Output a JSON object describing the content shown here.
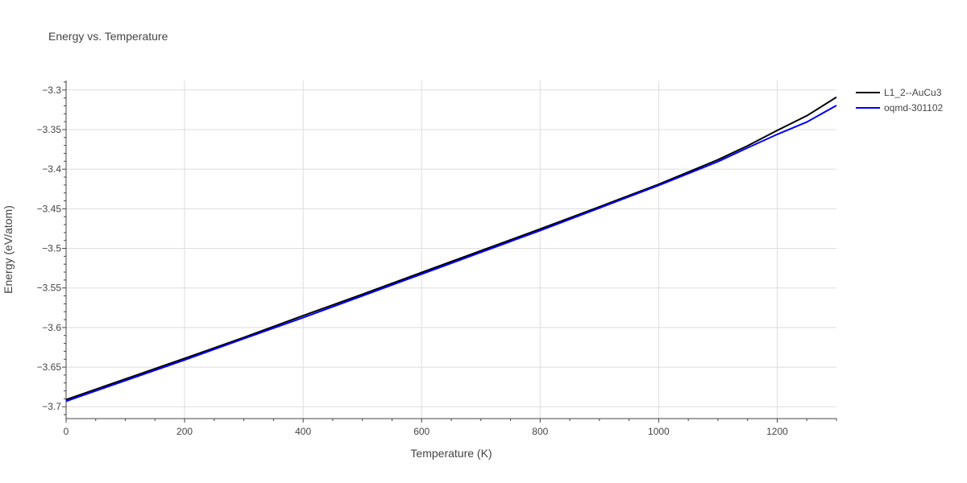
{
  "chart_data": {
    "type": "line",
    "title": "Energy vs. Temperature",
    "xlabel": "Temperature (K)",
    "ylabel": "Energy (eV/atom)",
    "xlim": [
      0,
      1300
    ],
    "ylim": [
      -3.715,
      -3.288
    ],
    "xticks": [
      0,
      200,
      400,
      600,
      800,
      1000,
      1200
    ],
    "xtick_labels": [
      "0",
      "200",
      "400",
      "600",
      "800",
      "1000",
      "1200"
    ],
    "yticks": [
      -3.7,
      -3.65,
      -3.6,
      -3.55,
      -3.5,
      -3.45,
      -3.4,
      -3.35,
      -3.3
    ],
    "ytick_labels": [
      "−3.7",
      "−3.65",
      "−3.6",
      "−3.55",
      "−3.5",
      "−3.45",
      "−3.4",
      "−3.35",
      "−3.3"
    ],
    "grid": true,
    "legend_position": "top-right",
    "series": [
      {
        "name": "L1_2--AuCu3",
        "color": "#000000",
        "x": [
          0,
          100,
          200,
          300,
          400,
          500,
          600,
          700,
          800,
          900,
          1000,
          1100,
          1150,
          1200,
          1250,
          1300
        ],
        "y": [
          -3.691,
          -3.665,
          -3.639,
          -3.6125,
          -3.585,
          -3.558,
          -3.5305,
          -3.503,
          -3.4755,
          -3.4475,
          -3.419,
          -3.388,
          -3.3705,
          -3.351,
          -3.3325,
          -3.309
        ]
      },
      {
        "name": "oqmd-301102",
        "color": "#0000ff",
        "x": [
          0,
          100,
          200,
          300,
          400,
          500,
          600,
          700,
          800,
          900,
          1000,
          1100,
          1150,
          1200,
          1250,
          1300
        ],
        "y": [
          -3.693,
          -3.667,
          -3.641,
          -3.614,
          -3.5875,
          -3.56,
          -3.5325,
          -3.505,
          -3.4775,
          -3.449,
          -3.4205,
          -3.3905,
          -3.373,
          -3.356,
          -3.3405,
          -3.3195
        ]
      }
    ]
  }
}
